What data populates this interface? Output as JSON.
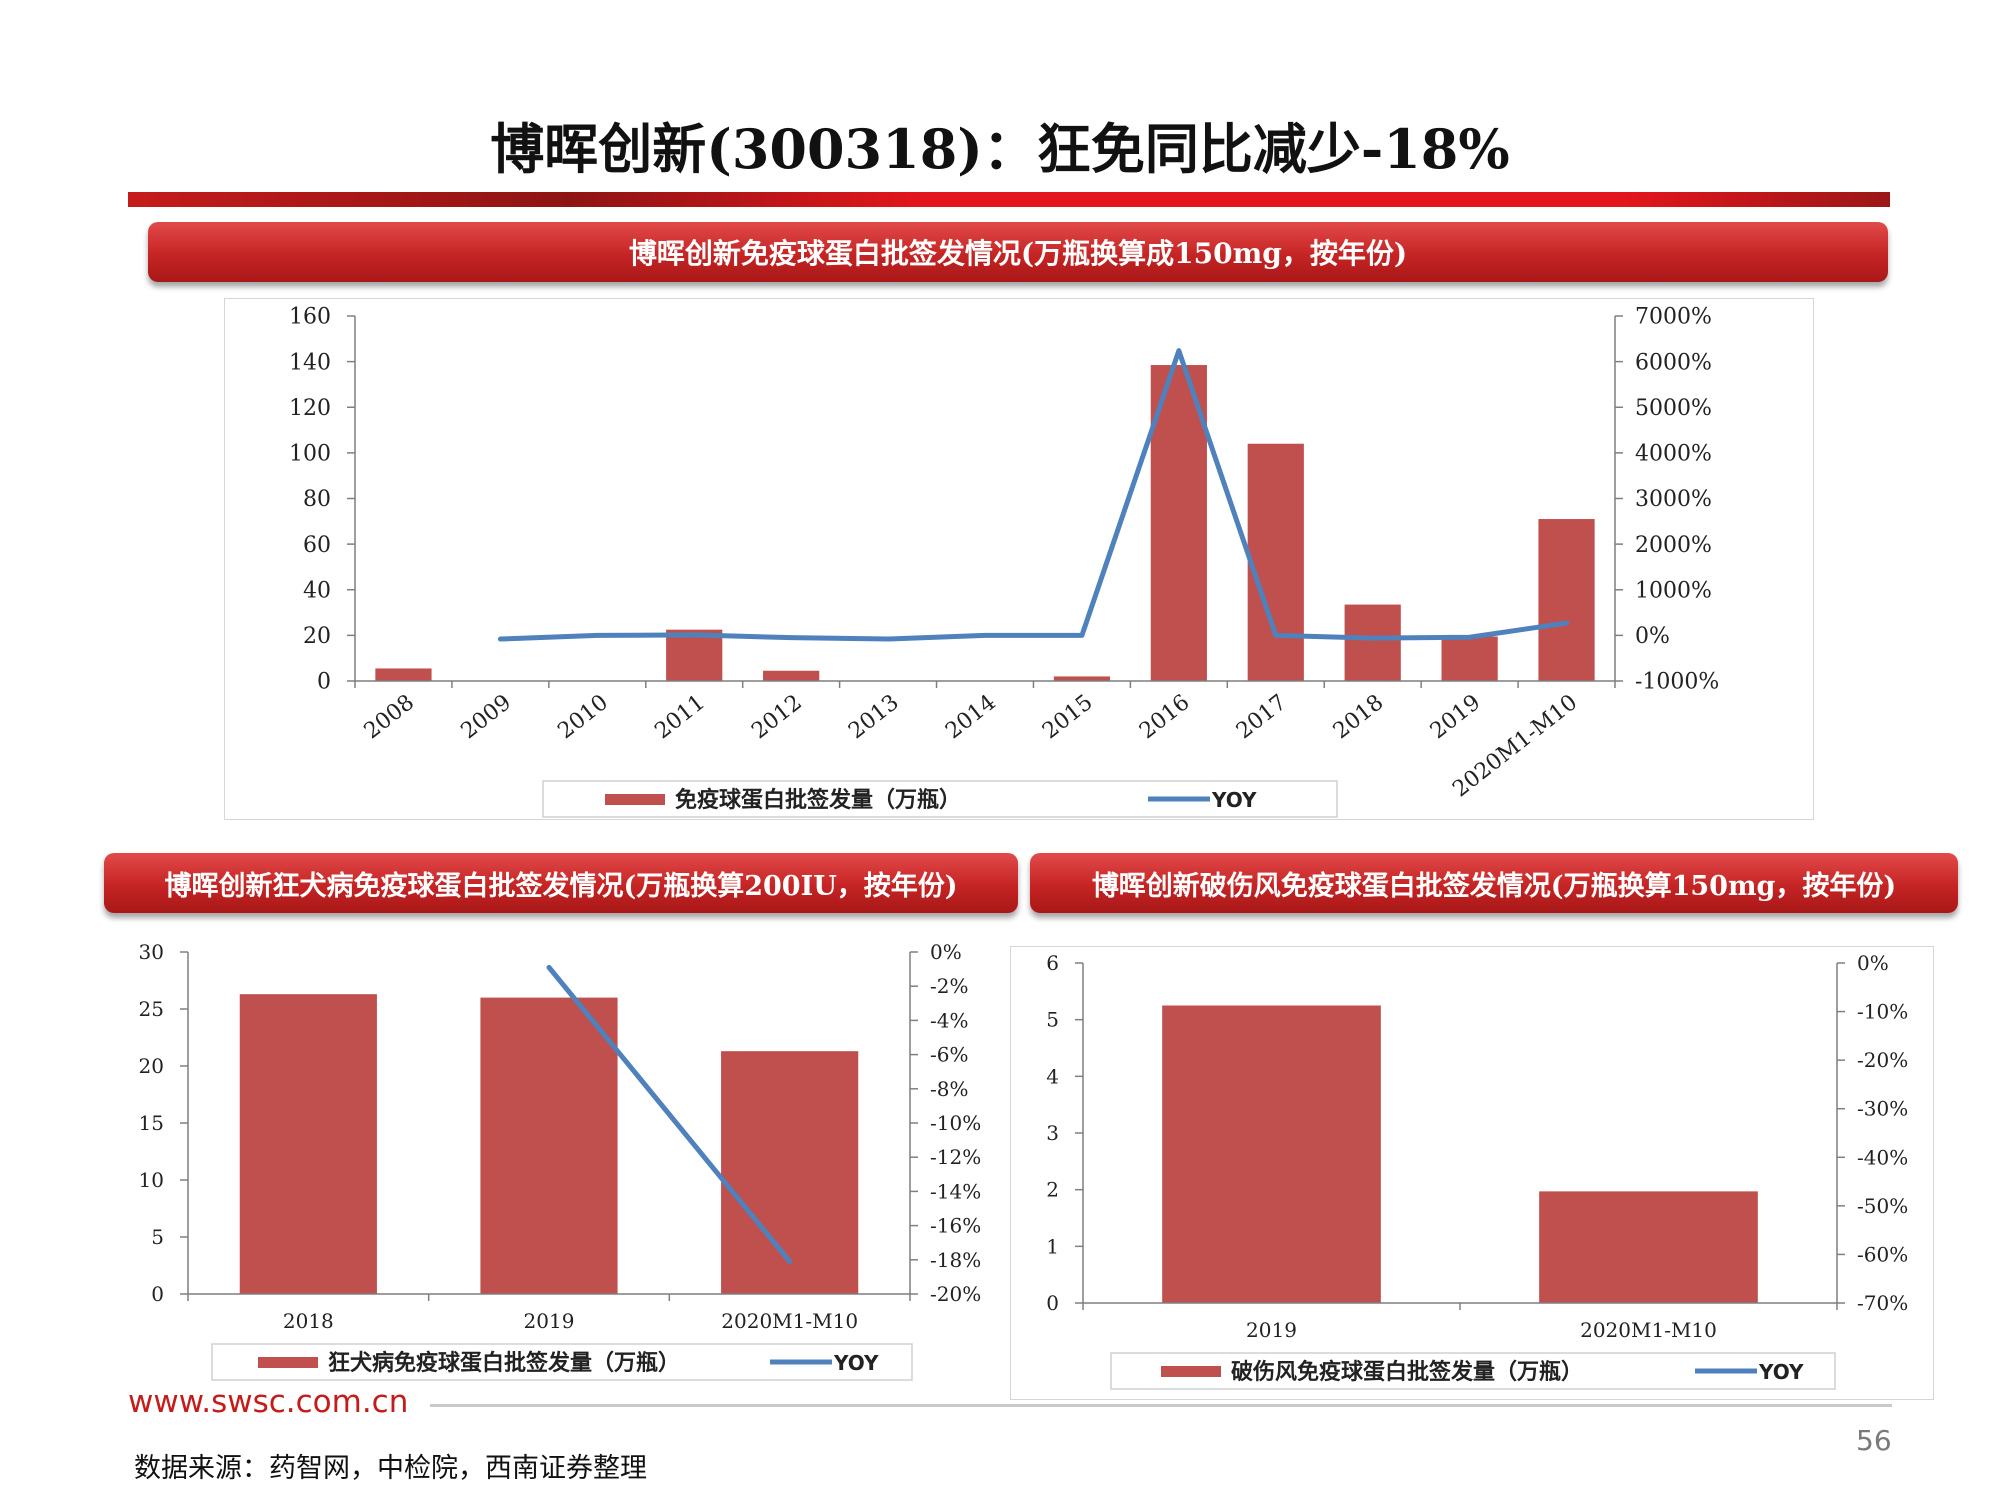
{
  "title": "博晖创新(300318)：狂免同比减少-18%",
  "chart_data": [
    {
      "type": "bar",
      "title": "博晖创新免疫球蛋白批签发情况(万瓶换算成150mg，按年份)",
      "categories": [
        "2008",
        "2009",
        "2010",
        "2011",
        "2012",
        "2013",
        "2014",
        "2015",
        "2016",
        "2017",
        "2018",
        "2019",
        "2020M1-M10"
      ],
      "series": [
        {
          "name": "免疫球蛋白批签发量（万瓶）",
          "kind": "bar",
          "axis": "left",
          "color": "#c0504d",
          "values": [
            5.5,
            0,
            0,
            22.5,
            4.5,
            0,
            0,
            2,
            138.5,
            104,
            33.5,
            19.5,
            71
          ]
        },
        {
          "name": "YOY",
          "kind": "line",
          "axis": "right",
          "color": "#4f81bd",
          "values": [
            null,
            -80,
            0,
            10,
            -50,
            -80,
            0,
            0,
            6240,
            0,
            -60,
            -40,
            270
          ]
        }
      ],
      "left_axis": {
        "min": 0,
        "max": 160,
        "step": 20,
        "ticks": [
          "0",
          "20",
          "40",
          "60",
          "80",
          "100",
          "120",
          "140",
          "160"
        ]
      },
      "right_axis": {
        "min": -1000,
        "max": 7000,
        "step": 1000,
        "ticks": [
          "-1000%",
          "0%",
          "1000%",
          "2000%",
          "3000%",
          "4000%",
          "5000%",
          "6000%",
          "7000%"
        ]
      },
      "legend_position": "bottom",
      "grid": false
    },
    {
      "type": "bar",
      "title": "博晖创新狂犬病免疫球蛋白批签发情况(万瓶换算200IU，按年份)",
      "categories": [
        "2018",
        "2019",
        "2020M1-M10"
      ],
      "series": [
        {
          "name": "狂犬病免疫球蛋白批签发量（万瓶）",
          "kind": "bar",
          "axis": "left",
          "color": "#c0504d",
          "values": [
            26.3,
            26,
            21.3
          ]
        },
        {
          "name": "YOY",
          "kind": "line",
          "axis": "right",
          "color": "#4f81bd",
          "values": [
            null,
            -0.9,
            -18.1
          ]
        }
      ],
      "left_axis": {
        "min": 0,
        "max": 30,
        "step": 5,
        "ticks": [
          "0",
          "5",
          "10",
          "15",
          "20",
          "25",
          "30"
        ]
      },
      "right_axis": {
        "min": -20,
        "max": 0,
        "step": 2,
        "ticks": [
          "-20%",
          "-18%",
          "-16%",
          "-14%",
          "-12%",
          "-10%",
          "-8%",
          "-6%",
          "-4%",
          "-2%",
          "0%"
        ]
      },
      "legend_position": "bottom",
      "grid": false
    },
    {
      "type": "bar",
      "title": "博晖创新破伤风免疫球蛋白批签发情况(万瓶换算150mg，按年份)",
      "categories": [
        "2019",
        "2020M1-M10"
      ],
      "series": [
        {
          "name": "破伤风免疫球蛋白批签发量（万瓶）",
          "kind": "bar",
          "axis": "left",
          "color": "#c0504d",
          "values": [
            5.25,
            1.97
          ]
        },
        {
          "name": "YOY",
          "kind": "line",
          "axis": "right",
          "color": "#4f81bd",
          "values": [
            null,
            null
          ]
        }
      ],
      "left_axis": {
        "min": 0,
        "max": 6,
        "step": 1,
        "ticks": [
          "0",
          "1",
          "2",
          "3",
          "4",
          "5",
          "6"
        ]
      },
      "right_axis": {
        "min": -70,
        "max": 0,
        "step": 10,
        "ticks": [
          "-70%",
          "-60%",
          "-50%",
          "-40%",
          "-30%",
          "-20%",
          "-10%",
          "0%"
        ]
      },
      "legend_position": "bottom",
      "grid": false
    }
  ],
  "footer": {
    "url": "www.swsc.com.cn",
    "page_number": "56",
    "source": "数据来源：药智网，中检院，西南证券整理"
  }
}
